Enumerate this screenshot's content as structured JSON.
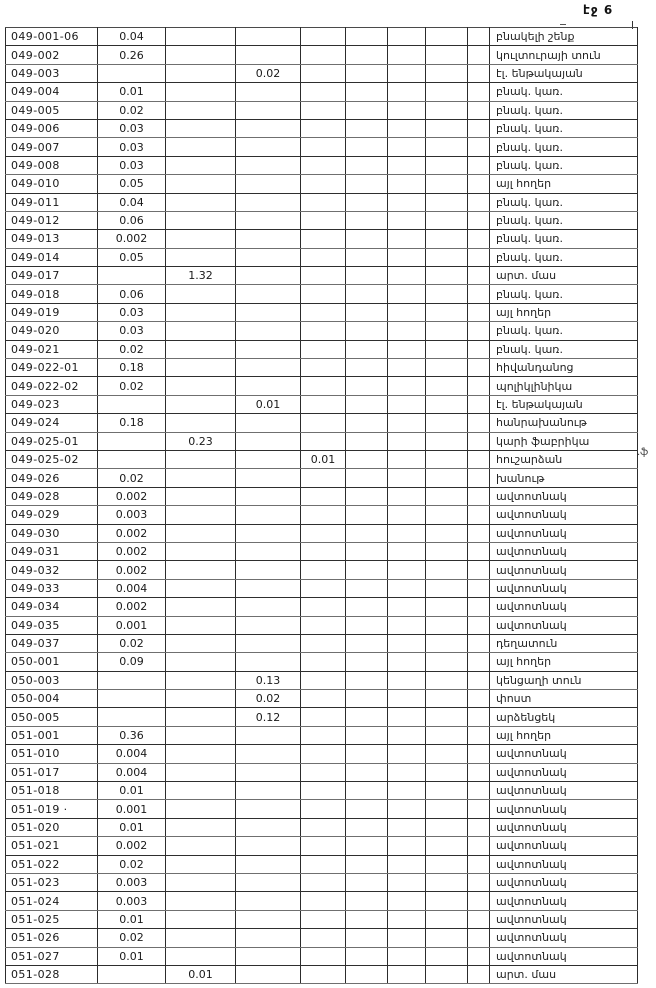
{
  "page": {
    "label": "էջ 6"
  },
  "marginal_note": ".ֆ",
  "table": {
    "num_value_columns": 9,
    "rows": [
      [
        "049-001-06",
        "0.04",
        "",
        "",
        "",
        "բնակելի շենք"
      ],
      [
        "049-002",
        "0.26",
        "",
        "",
        "",
        "կուլտուրայի տուն"
      ],
      [
        "049-003",
        "",
        "",
        "0.02",
        "",
        "էլ. ենթակայան"
      ],
      [
        "049-004",
        "0.01",
        "",
        "",
        "",
        "բնակ. կառ."
      ],
      [
        "049-005",
        "0.02",
        "",
        "",
        "",
        "բնակ. կառ."
      ],
      [
        "049-006",
        "0.03",
        "",
        "",
        "",
        "բնակ. կառ."
      ],
      [
        "049-007",
        "0.03",
        "",
        "",
        "",
        "բնակ. կառ."
      ],
      [
        "049-008",
        "0.03",
        "",
        "",
        "",
        "բնակ. կառ."
      ],
      [
        "049-010",
        "0.05",
        "",
        "",
        "",
        "այլ հողեր"
      ],
      [
        "049-011",
        "0.04",
        "",
        "",
        "",
        "բնակ. կառ."
      ],
      [
        "049-012",
        "0.06",
        "",
        "",
        "",
        "բնակ. կառ."
      ],
      [
        "049-013",
        "0.002",
        "",
        "",
        "",
        "բնակ. կառ."
      ],
      [
        "049-014",
        "0.05",
        "",
        "",
        "",
        "բնակ. կառ."
      ],
      [
        "049-017",
        "",
        "1.32",
        "",
        "",
        "արտ. մաս"
      ],
      [
        "049-018",
        "0.06",
        "",
        "",
        "",
        "բնակ. կառ."
      ],
      [
        "049-019",
        "0.03",
        "",
        "",
        "",
        "այլ հողեր"
      ],
      [
        "049-020",
        "0.03",
        "",
        "",
        "",
        "բնակ. կառ."
      ],
      [
        "049-021",
        "0.02",
        "",
        "",
        "",
        "բնակ. կառ."
      ],
      [
        "049-022-01",
        "0.18",
        "",
        "",
        "",
        "հիվանդանոց"
      ],
      [
        "049-022-02",
        "0.02",
        "",
        "",
        "",
        "պոլիկլինիկա"
      ],
      [
        "049-023",
        "",
        "",
        "0.01",
        "",
        "էլ. ենթակայան"
      ],
      [
        "049-024",
        "0.18",
        "",
        "",
        "",
        "հանրախանութ"
      ],
      [
        "049-025-01",
        "",
        "0.23",
        "",
        "",
        "կարի ֆաբրիկա"
      ],
      [
        "049-025-02",
        "",
        "",
        "",
        "0.01",
        "հուշարձան"
      ],
      [
        "049-026",
        "0.02",
        "",
        "",
        "",
        "խանութ"
      ],
      [
        "049-028",
        "0.002",
        "",
        "",
        "",
        "ավտոտնակ"
      ],
      [
        "049-029",
        "0.003",
        "",
        "",
        "",
        "ավտոտնակ"
      ],
      [
        "049-030",
        "0.002",
        "",
        "",
        "",
        "ավտոտնակ"
      ],
      [
        "049-031",
        "0.002",
        "",
        "",
        "",
        "ավտոտնակ"
      ],
      [
        "049-032",
        "0.002",
        "",
        "",
        "",
        "ավտոտնակ"
      ],
      [
        "049-033",
        "0.004",
        "",
        "",
        "",
        "ավտոտնակ"
      ],
      [
        "049-034",
        "0.002",
        "",
        "",
        "",
        "ավտոտնակ"
      ],
      [
        "049-035",
        "0.001",
        "",
        "",
        "",
        "ավտոտնակ"
      ],
      [
        "049-037",
        "0.02",
        "",
        "",
        "",
        "դեղատուն"
      ],
      [
        "050-001",
        "0.09",
        "",
        "",
        "",
        "այլ հողեր"
      ],
      [
        "050-003",
        "",
        "",
        "0.13",
        "",
        "կենցաղի տուն"
      ],
      [
        "050-004",
        "",
        "",
        "0.02",
        "",
        "փոստ"
      ],
      [
        "050-005",
        "",
        "",
        "0.12",
        "",
        "արձենցեկ"
      ],
      [
        "051-001",
        "0.36",
        "",
        "",
        "",
        "այլ հողեր"
      ],
      [
        "051-010",
        "0.004",
        "",
        "",
        "",
        "ավտոտնակ"
      ],
      [
        "051-017",
        "0.004",
        "",
        "",
        "",
        "ավտոտնակ"
      ],
      [
        "051-018",
        "0.01",
        "",
        "",
        "",
        "ավտոտնակ"
      ],
      [
        "051-019 ·",
        "0.001",
        "",
        "",
        "",
        "ավտոտնակ"
      ],
      [
        "051-020",
        "0.01",
        "",
        "",
        "",
        "ավտոտնակ"
      ],
      [
        "051-021",
        "0.002",
        "",
        "",
        "",
        "ավտոտնակ"
      ],
      [
        "051-022",
        "0.02",
        "",
        "",
        "",
        "ավտոտնակ"
      ],
      [
        "051-023",
        "0.003",
        "",
        "",
        "",
        "ավտոտնակ"
      ],
      [
        "051-024",
        "0.003",
        "",
        "",
        "",
        "ավտոտնակ"
      ],
      [
        "051-025",
        "0.01",
        "",
        "",
        "",
        "ավտոտնակ"
      ],
      [
        "051-026",
        "0.02",
        "",
        "",
        "",
        "ավտոտնակ"
      ],
      [
        "051-027",
        "0.01",
        "",
        "",
        "",
        "ավտոտնակ"
      ],
      [
        "051-028",
        "",
        "0.01",
        "",
        "",
        "արտ. մաս"
      ]
    ]
  }
}
